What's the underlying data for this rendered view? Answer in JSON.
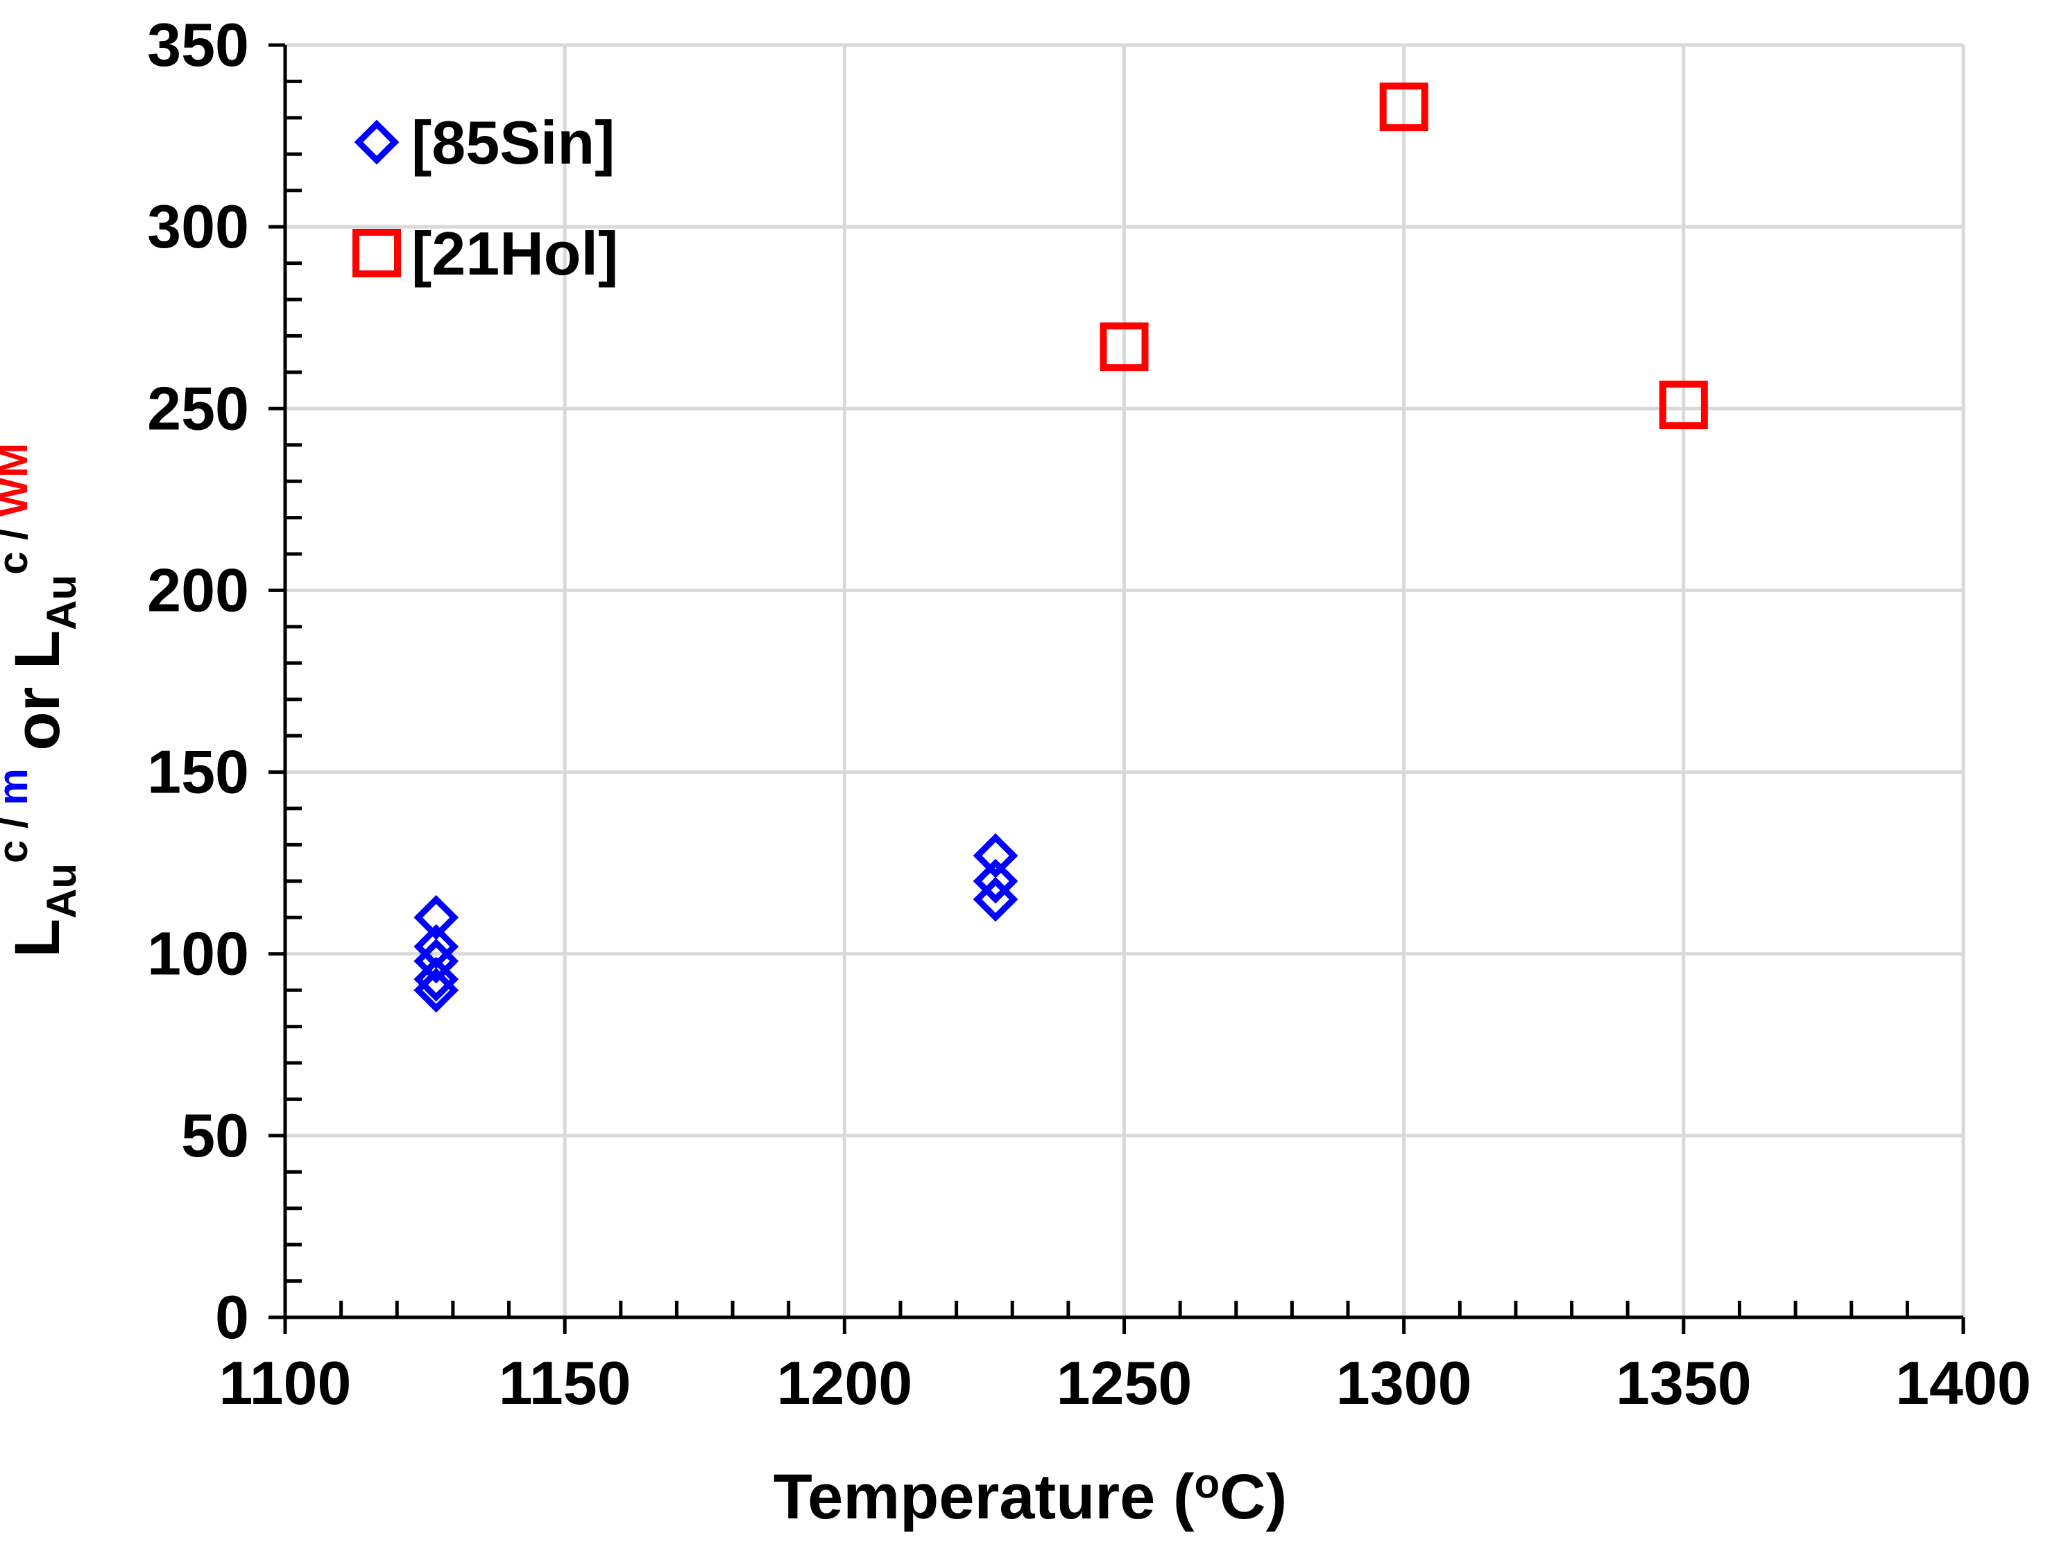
{
  "chart_data": {
    "type": "scatter",
    "xlabel": "Temperature (",
    "xlabel_sup": "o",
    "xlabel_end": "C)",
    "ylabel_parts": {
      "l1": "L",
      "sub1": "Au",
      "sup1": "c",
      "sup1_slash": " / ",
      "sup1_m": "m",
      "or": " or ",
      "l2": "L",
      "sub2": "Au",
      "sup2": "c / ",
      "sup2_wm": "WM"
    },
    "xlim": [
      1100,
      1400
    ],
    "ylim": [
      0,
      350
    ],
    "x_ticks": [
      1100,
      1150,
      1200,
      1250,
      1300,
      1350,
      1400
    ],
    "y_ticks": [
      0,
      50,
      100,
      150,
      200,
      250,
      300,
      350
    ],
    "x_tick_labels": [
      "1100",
      "1150",
      "1200",
      "1250",
      "1300",
      "1350",
      "1400"
    ],
    "y_tick_labels": [
      "0",
      "50",
      "100",
      "150",
      "200",
      "250",
      "300",
      "350"
    ],
    "grid": true,
    "legend_position": "top-left",
    "series": [
      {
        "name": "[85Sin]",
        "marker": "diamond",
        "color": "#0000ff",
        "points": [
          {
            "x": 1127,
            "y": 110
          },
          {
            "x": 1127,
            "y": 102
          },
          {
            "x": 1127,
            "y": 98
          },
          {
            "x": 1127,
            "y": 93
          },
          {
            "x": 1127,
            "y": 90
          },
          {
            "x": 1227,
            "y": 127
          },
          {
            "x": 1227,
            "y": 120
          },
          {
            "x": 1227,
            "y": 115
          }
        ]
      },
      {
        "name": "[21Hol]",
        "marker": "square",
        "color": "#ff0000",
        "points": [
          {
            "x": 1250,
            "y": 267
          },
          {
            "x": 1300,
            "y": 333
          },
          {
            "x": 1350,
            "y": 251
          }
        ]
      }
    ]
  },
  "colors": {
    "grid": "#d9d9d9",
    "axis": "#000000",
    "m_highlight": "#0000ff",
    "wm_highlight": "#ff0000"
  }
}
